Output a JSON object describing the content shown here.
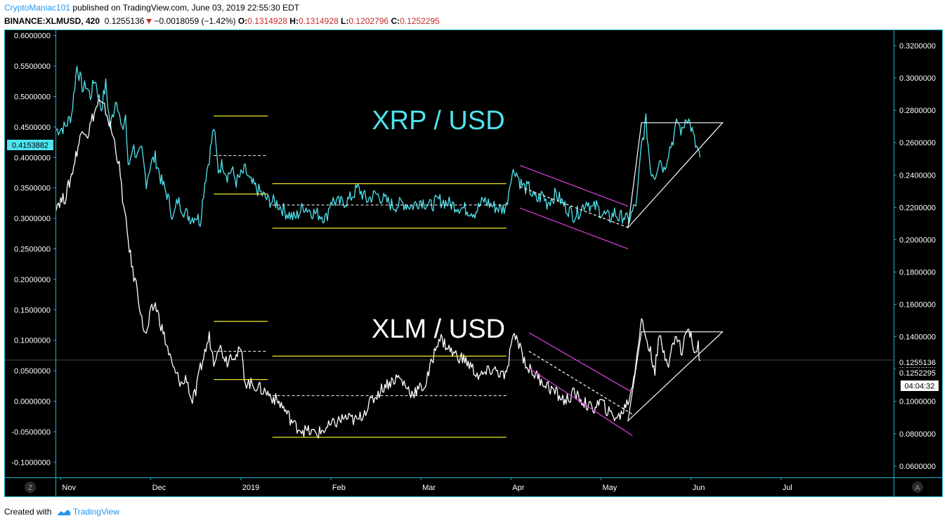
{
  "header": {
    "author": "CryptoManiac101",
    "published": "published on TradingView.com, June 03, 2019 22:55:30 EDT",
    "symbol": "BINANCE:XLMUSD, 420",
    "last": "0.1255136",
    "change": "−0.0018059 (−1.42%)",
    "o_label": "O:",
    "o": "0.1314928",
    "h_label": "H:",
    "h": "0.1314928",
    "l_label": "L:",
    "l": "0.1202796",
    "c_label": "C:",
    "c": "0.1252295"
  },
  "footer": {
    "created_with": "Created with",
    "brand": "TradingView"
  },
  "axis": {
    "z_button": "Z",
    "a_button": "A",
    "left_marker": "0.4153882",
    "right_marker_1": "0.1255136",
    "right_marker_2": "0.1252295",
    "countdown": "04:04:32"
  },
  "colors": {
    "background": "#000000",
    "frame": "#19b6c9",
    "xrp": "#4fe3ee",
    "xlm": "#ffffff",
    "channel": "#e8e82a",
    "wedge": "#e040e0",
    "left_marker_bg": "#4fe3ee"
  },
  "chart_data": {
    "type": "line",
    "annotations": [
      "XRP / USD",
      "XLM / USD"
    ],
    "left_axis": {
      "ticks": [
        "0.6000000",
        "0.5500000",
        "0.5000000",
        "0.4500000",
        "0.4000000",
        "0.3500000",
        "0.3000000",
        "0.2500000",
        "0.2000000",
        "0.1500000",
        "0.1000000",
        "0.0500000",
        "0.0000000",
        "-0.0500000",
        "-0.1000000"
      ],
      "ylim": [
        -0.125,
        0.61
      ]
    },
    "right_axis": {
      "ticks": [
        "0.3200000",
        "0.3000000",
        "0.2800000",
        "0.2600000",
        "0.2400000",
        "0.2200000",
        "0.2000000",
        "0.1800000",
        "0.1600000",
        "0.1400000",
        "0.1200000",
        "0.1000000",
        "0.0800000",
        "0.0600000"
      ],
      "ylim": [
        0.053,
        0.33
      ]
    },
    "x_ticks": [
      "Nov",
      "Dec",
      "2019",
      "Feb",
      "Mar",
      "Apr",
      "May",
      "Jun",
      "Jul"
    ],
    "x_tick_months": [
      0,
      1,
      2,
      3,
      4,
      5,
      6,
      7,
      8
    ],
    "xlim": [
      -0.05,
      9.25
    ],
    "series": [
      {
        "name": "XRP / USD",
        "axis": "left",
        "x": [
          -0.05,
          0.05,
          0.12,
          0.18,
          0.25,
          0.28,
          0.33,
          0.38,
          0.45,
          0.5,
          0.55,
          0.62,
          0.68,
          0.72,
          0.75,
          0.8,
          0.85,
          0.9,
          0.95,
          1.0,
          1.05,
          1.12,
          1.18,
          1.25,
          1.3,
          1.38,
          1.45,
          1.5,
          1.55,
          1.6,
          1.65,
          1.7,
          1.75,
          1.8,
          1.85,
          1.9,
          1.95,
          2.0,
          2.05,
          2.1,
          2.2,
          2.3,
          2.4,
          2.5,
          2.6,
          2.7,
          2.8,
          2.9,
          2.95,
          3.0,
          3.1,
          3.2,
          3.3,
          3.4,
          3.5,
          3.6,
          3.7,
          3.8,
          3.9,
          4.0,
          4.1,
          4.2,
          4.3,
          4.4,
          4.5,
          4.6,
          4.7,
          4.8,
          4.9,
          4.95,
          5.0,
          5.05,
          5.1,
          5.15,
          5.2,
          5.25,
          5.3,
          5.35,
          5.4,
          5.5,
          5.6,
          5.7,
          5.75,
          5.8,
          5.85,
          5.9,
          5.95,
          6.0,
          6.05,
          6.1,
          6.15,
          6.2,
          6.25,
          6.3,
          6.35,
          6.4,
          6.45,
          6.5,
          6.55,
          6.6,
          6.65,
          6.7,
          6.75,
          6.8,
          6.85,
          6.9,
          6.95,
          7.0,
          7.05,
          7.08,
          7.1
        ],
        "values": [
          0.445,
          0.45,
          0.47,
          0.55,
          0.51,
          0.52,
          0.5,
          0.53,
          0.48,
          0.52,
          0.45,
          0.5,
          0.44,
          0.47,
          0.38,
          0.42,
          0.4,
          0.41,
          0.36,
          0.39,
          0.4,
          0.36,
          0.34,
          0.3,
          0.33,
          0.31,
          0.3,
          0.305,
          0.295,
          0.36,
          0.4,
          0.45,
          0.38,
          0.39,
          0.37,
          0.38,
          0.36,
          0.37,
          0.38,
          0.36,
          0.345,
          0.33,
          0.325,
          0.31,
          0.3,
          0.32,
          0.31,
          0.305,
          0.3,
          0.33,
          0.325,
          0.33,
          0.35,
          0.33,
          0.34,
          0.33,
          0.32,
          0.325,
          0.32,
          0.33,
          0.32,
          0.33,
          0.325,
          0.32,
          0.315,
          0.31,
          0.33,
          0.32,
          0.315,
          0.32,
          0.37,
          0.38,
          0.36,
          0.35,
          0.35,
          0.335,
          0.33,
          0.34,
          0.325,
          0.34,
          0.32,
          0.305,
          0.31,
          0.32,
          0.33,
          0.315,
          0.32,
          0.31,
          0.305,
          0.3,
          0.31,
          0.3,
          0.305,
          0.295,
          0.31,
          0.33,
          0.42,
          0.46,
          0.38,
          0.37,
          0.4,
          0.38,
          0.41,
          0.43,
          0.46,
          0.44,
          0.47,
          0.45,
          0.42,
          0.41,
          0.4
        ]
      },
      {
        "name": "XLM / USD",
        "axis": "right",
        "x": [
          -0.05,
          0.05,
          0.12,
          0.18,
          0.25,
          0.3,
          0.35,
          0.42,
          0.5,
          0.55,
          0.6,
          0.65,
          0.7,
          0.75,
          0.8,
          0.85,
          0.9,
          0.95,
          1.0,
          1.05,
          1.1,
          1.15,
          1.2,
          1.25,
          1.3,
          1.35,
          1.4,
          1.45,
          1.5,
          1.55,
          1.6,
          1.65,
          1.7,
          1.75,
          1.8,
          1.85,
          1.9,
          1.95,
          2.0,
          2.05,
          2.15,
          2.3,
          2.45,
          2.6,
          2.7,
          2.85,
          3.0,
          3.15,
          3.3,
          3.45,
          3.6,
          3.75,
          3.9,
          4.05,
          4.2,
          4.35,
          4.5,
          4.65,
          4.8,
          4.95,
          5.0,
          5.05,
          5.1,
          5.15,
          5.2,
          5.3,
          5.4,
          5.5,
          5.6,
          5.7,
          5.8,
          5.9,
          6.0,
          6.1,
          6.2,
          6.25,
          6.3,
          6.35,
          6.4,
          6.45,
          6.5,
          6.55,
          6.6,
          6.65,
          6.7,
          6.75,
          6.8,
          6.85,
          6.9,
          6.95,
          7.0,
          7.05,
          7.08,
          7.1
        ],
        "values": [
          0.222,
          0.226,
          0.24,
          0.255,
          0.27,
          0.265,
          0.275,
          0.285,
          0.28,
          0.27,
          0.26,
          0.245,
          0.22,
          0.2,
          0.18,
          0.17,
          0.15,
          0.14,
          0.155,
          0.16,
          0.15,
          0.14,
          0.13,
          0.12,
          0.115,
          0.11,
          0.115,
          0.1,
          0.105,
          0.12,
          0.13,
          0.14,
          0.125,
          0.135,
          0.13,
          0.125,
          0.13,
          0.128,
          0.132,
          0.112,
          0.11,
          0.105,
          0.098,
          0.085,
          0.082,
          0.08,
          0.085,
          0.09,
          0.088,
          0.1,
          0.11,
          0.115,
          0.105,
          0.11,
          0.14,
          0.13,
          0.125,
          0.115,
          0.12,
          0.115,
          0.135,
          0.14,
          0.135,
          0.125,
          0.12,
          0.115,
          0.11,
          0.105,
          0.1,
          0.105,
          0.1,
          0.095,
          0.1,
          0.092,
          0.09,
          0.095,
          0.1,
          0.11,
          0.13,
          0.15,
          0.14,
          0.13,
          0.12,
          0.14,
          0.13,
          0.125,
          0.135,
          0.14,
          0.13,
          0.145,
          0.14,
          0.13,
          0.135,
          0.125
        ]
      }
    ],
    "drawings": {
      "xrp": {
        "channel_dec": {
          "x": [
            1.7,
            2.3
          ],
          "upper": 0.468,
          "lower": 0.34,
          "mid": 0.403
        },
        "channel_jan_apr": {
          "x": [
            2.35,
            4.95
          ],
          "upper": 0.357,
          "lower": 0.284,
          "mid": 0.322
        },
        "wedge_upper": [
          [
            5.1,
            0.387
          ],
          [
            6.3,
            0.32
          ]
        ],
        "wedge_lower": [
          [
            5.1,
            0.317
          ],
          [
            6.3,
            0.25
          ]
        ],
        "wedge_mid": [
          [
            5.1,
            0.352
          ],
          [
            6.3,
            0.285
          ]
        ],
        "triangle": [
          [
            6.3,
            0.285
          ],
          [
            6.45,
            0.457
          ],
          [
            7.35,
            0.457
          ]
        ]
      },
      "xlm": {
        "channel_dec": {
          "x": [
            1.7,
            2.3
          ],
          "upper": 0.1495,
          "lower": 0.1135,
          "mid": 0.131
        },
        "channel_jan_apr": {
          "x": [
            2.35,
            4.95
          ],
          "upper": 0.128,
          "lower": 0.0778,
          "mid": 0.1035
        },
        "wedge_upper": [
          [
            5.2,
            0.1425
          ],
          [
            6.35,
            0.1055
          ]
        ],
        "wedge_lower": [
          [
            5.2,
            0.1205
          ],
          [
            6.35,
            0.0788
          ]
        ],
        "wedge_mid": [
          [
            5.2,
            0.131
          ],
          [
            6.35,
            0.092
          ]
        ],
        "triangle": [
          [
            6.3,
            0.088
          ],
          [
            6.45,
            0.143
          ],
          [
            7.35,
            0.143
          ]
        ]
      }
    },
    "price_line": 0.1255136
  }
}
